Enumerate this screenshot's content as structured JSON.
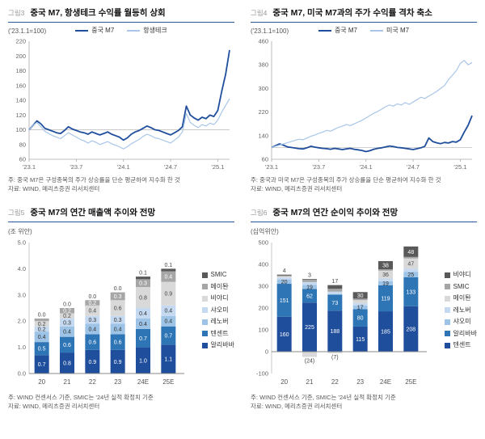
{
  "figures": [
    {
      "id": "fig3",
      "chart_index": 0,
      "tag": "그림3",
      "title": "중국 M7, 항생테크 수익률 월등히 상회",
      "unit": "('23.1.1=100)",
      "legend": [
        {
          "key": "china-m7",
          "label": "중국 M7",
          "color": "#1f4e9c",
          "type": "line",
          "thick": true
        },
        {
          "key": "hstech",
          "label": "항생테크",
          "color": "#a9c6e8",
          "type": "line",
          "thick": false
        }
      ],
      "notes": [
        "주: 중국 M7은 구성종목의 주가 상승률을 단순 평균하여 지수화 한 것",
        "자료: WIND, 메리츠증권 리서치센터"
      ]
    },
    {
      "id": "fig4",
      "chart_index": 1,
      "tag": "그림4",
      "title": "중국 M7, 미국 M7과의 주가 수익률 격차 축소",
      "unit": "('23.1.1=100)",
      "legend": [
        {
          "key": "china-m7",
          "label": "중국 M7",
          "color": "#1f4e9c",
          "type": "line",
          "thick": true
        },
        {
          "key": "us-m7",
          "label": "미국 M7",
          "color": "#a9c6e8",
          "type": "line",
          "thick": false
        }
      ],
      "notes": [
        "주: 중국과 미국 M7은 구성종목의 주가 상승률을 단순 평균하여 지수화 한 것",
        "자료: WIND, 메리츠증권 리서치센터"
      ]
    },
    {
      "id": "fig5",
      "chart_index": 2,
      "tag": "그림5",
      "title": "중국 M7의 연간 매출액 추이와 전망",
      "unit": "(조 위안)",
      "legend": [
        {
          "key": "smic",
          "label": "SMIC",
          "color": "#595959",
          "type": "square"
        },
        {
          "key": "meituan",
          "label": "메이퇀",
          "color": "#a6a6a6",
          "type": "square"
        },
        {
          "key": "byd",
          "label": "비야디",
          "color": "#d9d9d9",
          "type": "square"
        },
        {
          "key": "xiaomi",
          "label": "샤오미",
          "color": "#c5d9f1",
          "type": "square"
        },
        {
          "key": "lenovo",
          "label": "레노버",
          "color": "#9dc3e6",
          "type": "square"
        },
        {
          "key": "tencent",
          "label": "텐센트",
          "color": "#2e75b6",
          "type": "square"
        },
        {
          "key": "alibaba",
          "label": "알리바바",
          "color": "#1f4e9c",
          "type": "square"
        }
      ],
      "notes": [
        "주: WIND 컨센서스 기준, SMIC는 '24년 실적 확정치 기준",
        "자료: WIND, 메리츠증권 리서치센터"
      ]
    },
    {
      "id": "fig6",
      "chart_index": 3,
      "tag": "그림6",
      "title": "중국 M7의 연간 순이익 추이와 전망",
      "unit": "(십억위안)",
      "legend": [
        {
          "key": "byd",
          "label": "비야디",
          "color": "#595959",
          "type": "square"
        },
        {
          "key": "smic",
          "label": "SMIC",
          "color": "#a6a6a6",
          "type": "square"
        },
        {
          "key": "meituan",
          "label": "메이퇀",
          "color": "#d9d9d9",
          "type": "square"
        },
        {
          "key": "lenovo",
          "label": "레노버",
          "color": "#c5d9f1",
          "type": "square"
        },
        {
          "key": "xiaomi",
          "label": "샤오미",
          "color": "#9dc3e6",
          "type": "square"
        },
        {
          "key": "alibaba",
          "label": "알리바바",
          "color": "#2e75b6",
          "type": "square"
        },
        {
          "key": "tencent",
          "label": "텐센트",
          "color": "#1f4e9c",
          "type": "square"
        }
      ],
      "notes": [
        "주: WIND 컨센서스 기준, SMIC는 '24년 실적 확정치 기준",
        "자료: WIND, 메리츠증권 리서치센터"
      ]
    }
  ],
  "chart_data": [
    {
      "type": "line",
      "title": "중국 M7, 항생테크 수익률 월등히 상회",
      "ylabel": "'23.1.1=100 지수",
      "ylim": [
        60,
        220
      ],
      "yticks": [
        60,
        80,
        100,
        120,
        140,
        160,
        180,
        200,
        220
      ],
      "ref_line": 100,
      "x_months_span": 25.5,
      "xticks": [
        {
          "label": "'23.1",
          "m": 0
        },
        {
          "label": "'23.7",
          "m": 6
        },
        {
          "label": "'24.1",
          "m": 12
        },
        {
          "label": "'24.7",
          "m": 18
        },
        {
          "label": "'25.1",
          "m": 24
        }
      ],
      "series": [
        {
          "name": "중국 M7",
          "color": "#1f4e9c",
          "width": 1.8,
          "values": [
            100,
            106,
            112,
            108,
            102,
            100,
            98,
            96,
            95,
            99,
            104,
            101,
            99,
            97,
            96,
            94,
            97,
            95,
            93,
            95,
            97,
            94,
            92,
            90,
            86,
            89,
            94,
            97,
            99,
            102,
            105,
            103,
            100,
            99,
            97,
            95,
            93,
            96,
            99,
            104,
            132,
            120,
            116,
            113,
            117,
            115,
            120,
            118,
            126,
            152,
            175,
            208
          ]
        },
        {
          "name": "항생테크",
          "color": "#a9c6e8",
          "width": 1.2,
          "values": [
            100,
            106,
            110,
            104,
            98,
            95,
            92,
            90,
            88,
            92,
            96,
            93,
            90,
            87,
            85,
            82,
            85,
            83,
            80,
            82,
            84,
            81,
            79,
            77,
            74,
            77,
            81,
            84,
            87,
            91,
            94,
            92,
            89,
            88,
            86,
            84,
            82,
            86,
            90,
            97,
            122,
            110,
            106,
            103,
            107,
            105,
            109,
            107,
            113,
            124,
            133,
            142
          ]
        }
      ]
    },
    {
      "type": "line",
      "title": "중국 M7, 미국 M7과의 주가 수익률 격차 축소",
      "ylabel": "'23.1.1=100 지수",
      "ylim": [
        60,
        460
      ],
      "yticks": [
        60,
        140,
        220,
        300,
        380,
        460
      ],
      "ref_line": 100,
      "x_months_span": 25.5,
      "xticks": [
        {
          "label": "'23.1",
          "m": 0
        },
        {
          "label": "'23.7",
          "m": 6
        },
        {
          "label": "'24.1",
          "m": 12
        },
        {
          "label": "'24.7",
          "m": 18
        },
        {
          "label": "'25.1",
          "m": 24
        }
      ],
      "series": [
        {
          "name": "중국 M7",
          "color": "#1f4e9c",
          "width": 1.8,
          "values": [
            100,
            106,
            112,
            108,
            102,
            100,
            98,
            96,
            95,
            99,
            104,
            101,
            99,
            97,
            96,
            94,
            97,
            95,
            93,
            95,
            97,
            94,
            92,
            90,
            86,
            89,
            94,
            97,
            99,
            102,
            105,
            103,
            100,
            99,
            97,
            95,
            93,
            96,
            99,
            104,
            132,
            120,
            116,
            113,
            117,
            115,
            120,
            118,
            126,
            152,
            175,
            208
          ]
        },
        {
          "name": "미국 M7",
          "color": "#a9c6e8",
          "width": 1.2,
          "values": [
            100,
            104,
            108,
            112,
            116,
            120,
            124,
            128,
            126,
            132,
            138,
            142,
            148,
            152,
            158,
            155,
            162,
            168,
            172,
            178,
            174,
            180,
            186,
            192,
            200,
            208,
            216,
            222,
            230,
            238,
            244,
            240,
            248,
            244,
            252,
            246,
            254,
            262,
            270,
            266,
            274,
            282,
            290,
            300,
            310,
            330,
            345,
            360,
            385,
            395,
            380,
            388
          ]
        }
      ]
    },
    {
      "type": "stacked_bar",
      "title": "중국 M7의 연간 매출액 추이와 전망",
      "ylabel": "조 위안",
      "ylim": [
        0,
        5
      ],
      "yticks": [
        0,
        1,
        2,
        3,
        4,
        5
      ],
      "ytick_decimals": 1,
      "label_decimals": 1,
      "label_min": 0.2,
      "categories": [
        "20",
        "21",
        "22",
        "23",
        "24E",
        "25E"
      ],
      "series_bottom_up": [
        {
          "name": "알리바바",
          "color": "#1f4e9c",
          "text": "#ffffff",
          "values": [
            0.7,
            0.8,
            0.9,
            0.9,
            1.0,
            1.1
          ]
        },
        {
          "name": "텐센트",
          "color": "#2e75b6",
          "text": "#ffffff",
          "values": [
            0.5,
            0.6,
            0.6,
            0.6,
            0.7,
            0.7
          ]
        },
        {
          "name": "레노버",
          "color": "#9dc3e6",
          "text": "#333333",
          "values": [
            0.4,
            0.4,
            0.4,
            0.4,
            0.4,
            0.4
          ]
        },
        {
          "name": "샤오미",
          "color": "#c5d9f1",
          "text": "#333333",
          "values": [
            0.2,
            0.3,
            0.3,
            0.3,
            0.4,
            0.4
          ]
        },
        {
          "name": "비야디",
          "color": "#d9d9d9",
          "text": "#444444",
          "values": [
            0.2,
            0.2,
            0.4,
            0.6,
            0.8,
            0.9
          ]
        },
        {
          "name": "메이퇀",
          "color": "#a6a6a6",
          "text": "#ffffff",
          "values": [
            0.1,
            0.2,
            0.2,
            0.3,
            0.3,
            0.4
          ]
        },
        {
          "name": "SMIC",
          "color": "#595959",
          "text": "#ffffff",
          "values": [
            0.0,
            0.0,
            0.0,
            0.0,
            0.1,
            0.1
          ],
          "label_outside": true
        }
      ]
    },
    {
      "type": "stacked_bar",
      "title": "중국 M7의 연간 순이익 추이와 전망",
      "ylabel": "십억위안",
      "ylim": [
        -100,
        500
      ],
      "yticks": [
        -100,
        0,
        100,
        200,
        300,
        400,
        500
      ],
      "ytick_decimals": 0,
      "label_decimals": 0,
      "label_min": 15,
      "categories": [
        "20",
        "21",
        "22",
        "23",
        "24E",
        "25E"
      ],
      "series_bottom_up": [
        {
          "name": "텐센트",
          "color": "#1f4e9c",
          "text": "#ffffff",
          "values": [
            160,
            225,
            188,
            115,
            185,
            208
          ]
        },
        {
          "name": "알리바바",
          "color": "#2e75b6",
          "text": "#ffffff",
          "values": [
            151,
            62,
            73,
            80,
            119,
            133
          ]
        },
        {
          "name": "샤오미",
          "color": "#9dc3e6",
          "text": "#333333",
          "values": [
            20,
            19,
            2,
            17,
            19,
            25
          ]
        },
        {
          "name": "레노버",
          "color": "#c5d9f1",
          "text": "#333333",
          "values": [
            9,
            13,
            12,
            10,
            12,
            14
          ]
        },
        {
          "name": "메이퇀",
          "color": "#d9d9d9",
          "text": "#444444",
          "values": [
            5,
            -24,
            -7,
            14,
            36,
            47
          ]
        },
        {
          "name": "SMIC",
          "color": "#a6a6a6",
          "text": "#ffffff",
          "values": [
            4,
            11,
            13,
            7,
            6,
            7
          ]
        },
        {
          "name": "비야디",
          "color": "#595959",
          "text": "#ffffff",
          "values": [
            4,
            3,
            17,
            30,
            38,
            48
          ],
          "label_outside": true
        }
      ]
    }
  ]
}
